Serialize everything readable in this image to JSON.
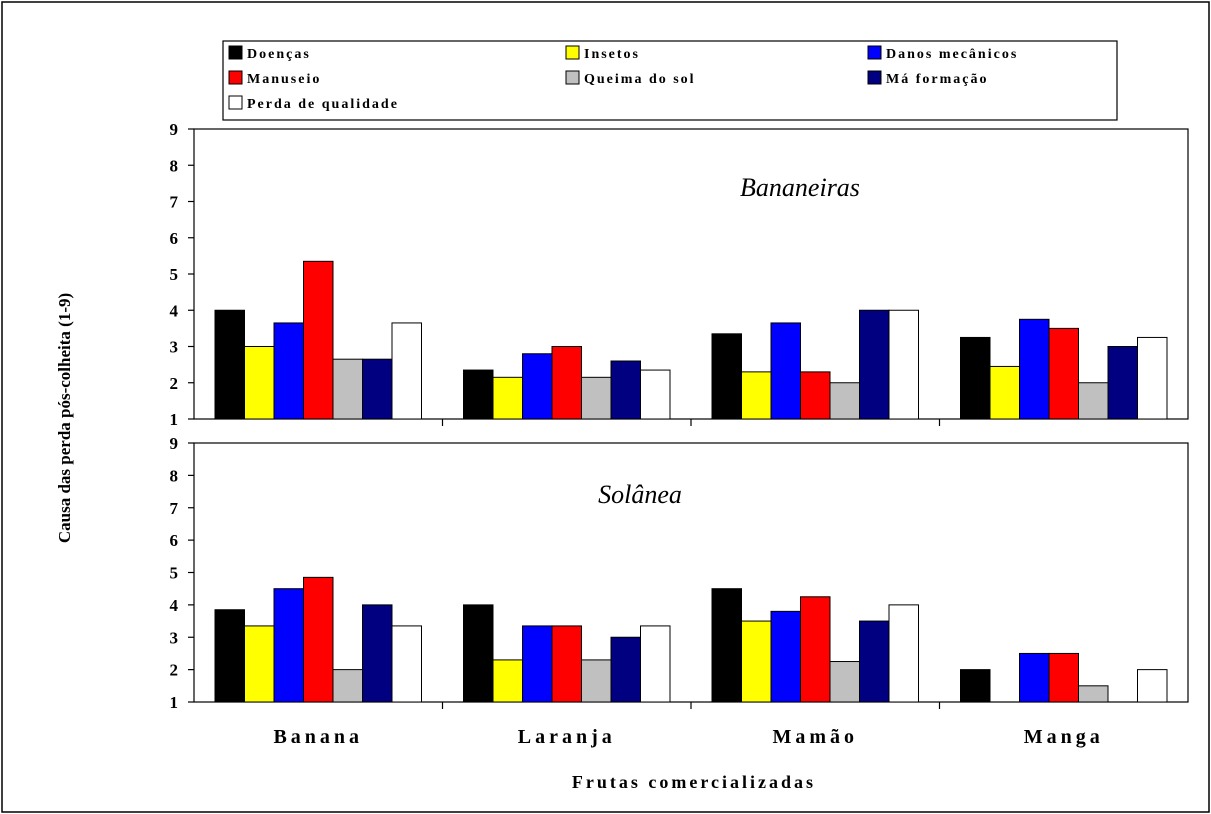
{
  "chart_data": {
    "type": "bar",
    "categories": [
      "Banana",
      "Laranja",
      "Mamão",
      "Manga"
    ],
    "xlabel": "Frutas comercializadas",
    "ylabel": "Causa das perda pós-colheita (1-9)",
    "ylim": [
      1,
      9
    ],
    "yticks": [
      "1",
      "2",
      "3",
      "4",
      "5",
      "6",
      "7",
      "8",
      "9"
    ],
    "grid": false,
    "legend": {
      "position": "top",
      "entries": [
        {
          "label": "Doenças",
          "color": "#000000"
        },
        {
          "label": "Insetos",
          "color": "#ffff00"
        },
        {
          "label": "Danos mecânicos",
          "color": "#0000ff"
        },
        {
          "label": "Manuseio",
          "color": "#ff0000"
        },
        {
          "label": "Queima do sol",
          "color": "#c0c0c0"
        },
        {
          "label": "Má formação",
          "color": "#000080"
        },
        {
          "label": "Perda de qualidade",
          "color": "#ffffff"
        }
      ]
    },
    "panels": [
      {
        "title": "Bananeiras",
        "series": [
          {
            "name": "Doenças",
            "values": [
              4.0,
              2.35,
              3.35,
              3.25
            ]
          },
          {
            "name": "Insetos",
            "values": [
              3.0,
              2.15,
              2.3,
              2.45
            ]
          },
          {
            "name": "Danos mecânicos",
            "values": [
              3.65,
              2.8,
              3.65,
              3.75
            ]
          },
          {
            "name": "Manuseio",
            "values": [
              5.35,
              3.0,
              2.3,
              3.5
            ]
          },
          {
            "name": "Queima do sol",
            "values": [
              2.65,
              2.15,
              2.0,
              2.0
            ]
          },
          {
            "name": "Má formação",
            "values": [
              2.65,
              2.6,
              4.0,
              3.0
            ]
          },
          {
            "name": "Perda de qualidade",
            "values": [
              3.65,
              2.35,
              4.0,
              3.25
            ]
          }
        ]
      },
      {
        "title": "Solânea",
        "series": [
          {
            "name": "Doenças",
            "values": [
              3.85,
              4.0,
              4.5,
              2.0
            ]
          },
          {
            "name": "Insetos",
            "values": [
              3.35,
              2.3,
              3.5,
              null
            ]
          },
          {
            "name": "Danos mecânicos",
            "values": [
              4.5,
              3.35,
              3.8,
              2.5
            ]
          },
          {
            "name": "Manuseio",
            "values": [
              4.85,
              3.35,
              4.25,
              2.5
            ]
          },
          {
            "name": "Queima do sol",
            "values": [
              2.0,
              2.3,
              2.25,
              1.5
            ]
          },
          {
            "name": "Má formação",
            "values": [
              4.0,
              3.0,
              3.5,
              null
            ]
          },
          {
            "name": "Perda de qualidade",
            "values": [
              3.35,
              3.35,
              4.0,
              2.0
            ]
          }
        ]
      }
    ]
  }
}
